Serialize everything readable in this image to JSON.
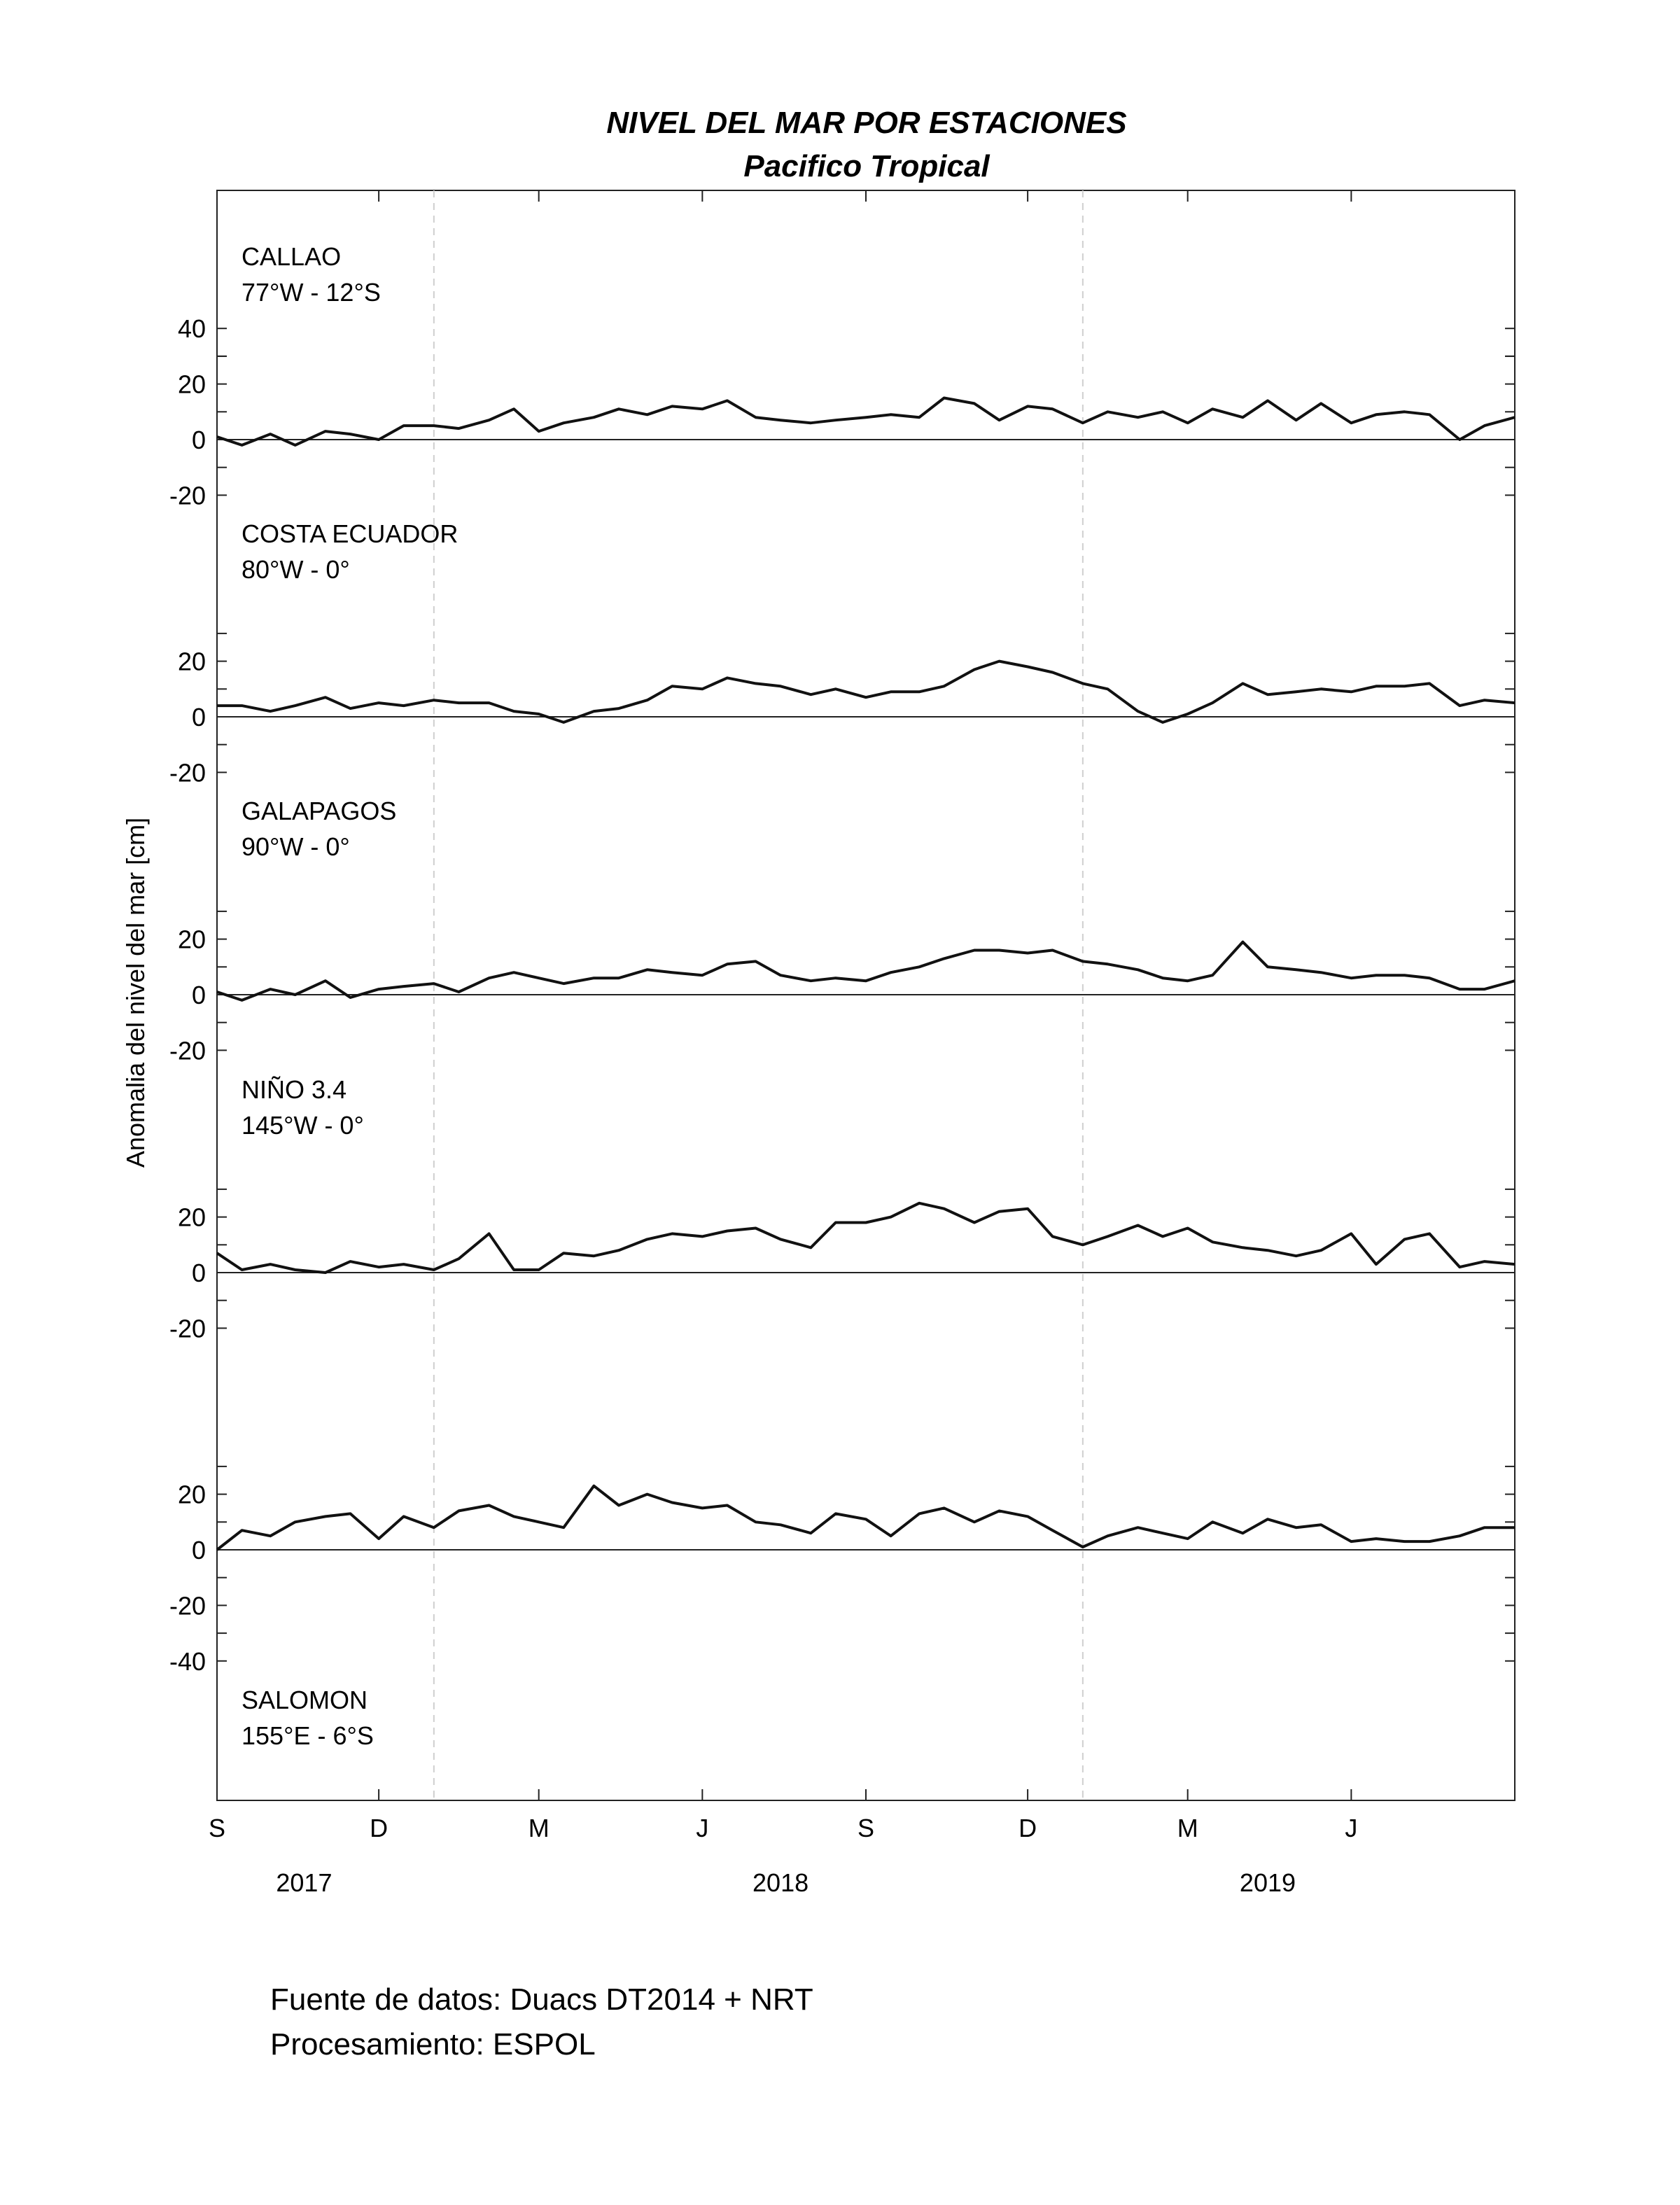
{
  "chart_data": {
    "type": "line",
    "title": "NIVEL DEL MAR POR ESTACIONES",
    "subtitle": "Pacifico Tropical",
    "ylabel": "Anomalia del nivel del mar [cm]",
    "xlabel": "",
    "grid": false,
    "x_range": [
      "2017-09-01",
      "2019-09-01"
    ],
    "month_ticks": [
      {
        "label": "S",
        "date": "2017-09-01"
      },
      {
        "label": "D",
        "date": "2017-12-01"
      },
      {
        "label": "M",
        "date": "2018-03-01"
      },
      {
        "label": "J",
        "date": "2018-06-01"
      },
      {
        "label": "S",
        "date": "2018-09-01"
      },
      {
        "label": "D",
        "date": "2018-12-01"
      },
      {
        "label": "M",
        "date": "2019-03-01"
      },
      {
        "label": "J",
        "date": "2019-06-01"
      }
    ],
    "year_labels": [
      {
        "label": "2017",
        "date": "2017-10-20"
      },
      {
        "label": "2018",
        "date": "2018-07-15"
      },
      {
        "label": "2019",
        "date": "2019-04-15"
      }
    ],
    "year_boundaries": [
      "2018-01-01",
      "2019-01-01"
    ],
    "panel_ylim": [
      -20,
      30
    ],
    "y_ticks": [
      {
        "label": "40",
        "value": 40
      },
      {
        "label": "20",
        "value": 20
      },
      {
        "label": "0",
        "value": 0
      },
      {
        "label": "-20",
        "value": -20
      },
      {
        "label": "20",
        "value": 20
      },
      {
        "label": "0",
        "value": 0
      },
      {
        "label": "-20",
        "value": -20
      },
      {
        "label": "20",
        "value": 20
      },
      {
        "label": "0",
        "value": 0
      },
      {
        "label": "-20",
        "value": -20
      },
      {
        "label": "20",
        "value": 20
      },
      {
        "label": "0",
        "value": 0
      },
      {
        "label": "-20",
        "value": -20
      },
      {
        "label": "20",
        "value": 20
      },
      {
        "label": "0",
        "value": 0
      },
      {
        "label": "-20",
        "value": -20
      },
      {
        "label": "-40",
        "value": -40
      }
    ],
    "series": [
      {
        "name": "CALLAO",
        "coords": "77°W - 12°S",
        "x": [
          "2017-09-01",
          "2017-09-15",
          "2017-10-01",
          "2017-10-15",
          "2017-11-01",
          "2017-11-15",
          "2017-12-01",
          "2017-12-15",
          "2018-01-01",
          "2018-01-15",
          "2018-02-01",
          "2018-02-15",
          "2018-03-01",
          "2018-03-15",
          "2018-04-01",
          "2018-04-15",
          "2018-05-01",
          "2018-05-15",
          "2018-06-01",
          "2018-06-15",
          "2018-07-01",
          "2018-07-15",
          "2018-08-01",
          "2018-08-15",
          "2018-09-01",
          "2018-09-15",
          "2018-10-01",
          "2018-10-15",
          "2018-11-01",
          "2018-11-15",
          "2018-12-01",
          "2018-12-15",
          "2019-01-01",
          "2019-01-15",
          "2019-02-01",
          "2019-02-15",
          "2019-03-01",
          "2019-03-15",
          "2019-04-01",
          "2019-04-15",
          "2019-05-01",
          "2019-05-15",
          "2019-06-01",
          "2019-06-15",
          "2019-07-01",
          "2019-07-15",
          "2019-08-01",
          "2019-08-15",
          "2019-09-01"
        ],
        "y": [
          1,
          -2,
          2,
          -2,
          3,
          2,
          0,
          5,
          5,
          4,
          7,
          11,
          3,
          6,
          8,
          11,
          9,
          12,
          11,
          14,
          8,
          7,
          6,
          7,
          8,
          9,
          8,
          15,
          13,
          7,
          12,
          11,
          6,
          10,
          8,
          10,
          6,
          11,
          8,
          14,
          7,
          13,
          6,
          9,
          10,
          9,
          0,
          5,
          8
        ]
      },
      {
        "name": "COSTA ECUADOR",
        "coords": "80°W - 0°",
        "x": [
          "2017-09-01",
          "2017-09-15",
          "2017-10-01",
          "2017-10-15",
          "2017-11-01",
          "2017-11-15",
          "2017-12-01",
          "2017-12-15",
          "2018-01-01",
          "2018-01-15",
          "2018-02-01",
          "2018-02-15",
          "2018-03-01",
          "2018-03-15",
          "2018-04-01",
          "2018-04-15",
          "2018-05-01",
          "2018-05-15",
          "2018-06-01",
          "2018-06-15",
          "2018-07-01",
          "2018-07-15",
          "2018-08-01",
          "2018-08-15",
          "2018-09-01",
          "2018-09-15",
          "2018-10-01",
          "2018-10-15",
          "2018-11-01",
          "2018-11-15",
          "2018-12-01",
          "2018-12-15",
          "2019-01-01",
          "2019-01-15",
          "2019-02-01",
          "2019-02-15",
          "2019-03-01",
          "2019-03-15",
          "2019-04-01",
          "2019-04-15",
          "2019-05-01",
          "2019-05-15",
          "2019-06-01",
          "2019-06-15",
          "2019-07-01",
          "2019-07-15",
          "2019-08-01",
          "2019-08-15",
          "2019-09-01"
        ],
        "y": [
          4,
          4,
          2,
          4,
          7,
          3,
          5,
          4,
          6,
          5,
          5,
          2,
          1,
          -2,
          2,
          3,
          6,
          11,
          10,
          14,
          12,
          11,
          8,
          10,
          7,
          9,
          9,
          11,
          17,
          20,
          18,
          16,
          12,
          10,
          2,
          -2,
          1,
          5,
          12,
          8,
          9,
          10,
          9,
          11,
          11,
          12,
          4,
          6,
          5
        ]
      },
      {
        "name": "GALAPAGOS",
        "coords": "90°W - 0°",
        "x": [
          "2017-09-01",
          "2017-09-15",
          "2017-10-01",
          "2017-10-15",
          "2017-11-01",
          "2017-11-15",
          "2017-12-01",
          "2017-12-15",
          "2018-01-01",
          "2018-01-15",
          "2018-02-01",
          "2018-02-15",
          "2018-03-01",
          "2018-03-15",
          "2018-04-01",
          "2018-04-15",
          "2018-05-01",
          "2018-05-15",
          "2018-06-01",
          "2018-06-15",
          "2018-07-01",
          "2018-07-15",
          "2018-08-01",
          "2018-08-15",
          "2018-09-01",
          "2018-09-15",
          "2018-10-01",
          "2018-10-15",
          "2018-11-01",
          "2018-11-15",
          "2018-12-01",
          "2018-12-15",
          "2019-01-01",
          "2019-01-15",
          "2019-02-01",
          "2019-02-15",
          "2019-03-01",
          "2019-03-15",
          "2019-04-01",
          "2019-04-15",
          "2019-05-01",
          "2019-05-15",
          "2019-06-01",
          "2019-06-15",
          "2019-07-01",
          "2019-07-15",
          "2019-08-01",
          "2019-08-15",
          "2019-09-01"
        ],
        "y": [
          1,
          -2,
          2,
          0,
          5,
          -1,
          2,
          3,
          4,
          1,
          6,
          8,
          6,
          4,
          6,
          6,
          9,
          8,
          7,
          11,
          12,
          7,
          5,
          6,
          5,
          8,
          10,
          13,
          16,
          16,
          15,
          16,
          12,
          11,
          9,
          6,
          5,
          7,
          19,
          10,
          9,
          8,
          6,
          7,
          7,
          6,
          2,
          2,
          5
        ]
      },
      {
        "name": "NIÑO 3.4",
        "coords": "145°W - 0°",
        "x": [
          "2017-09-01",
          "2017-09-15",
          "2017-10-01",
          "2017-10-15",
          "2017-11-01",
          "2017-11-15",
          "2017-12-01",
          "2017-12-15",
          "2018-01-01",
          "2018-01-15",
          "2018-02-01",
          "2018-02-15",
          "2018-03-01",
          "2018-03-15",
          "2018-04-01",
          "2018-04-15",
          "2018-05-01",
          "2018-05-15",
          "2018-06-01",
          "2018-06-15",
          "2018-07-01",
          "2018-07-15",
          "2018-08-01",
          "2018-08-15",
          "2018-09-01",
          "2018-09-15",
          "2018-10-01",
          "2018-10-15",
          "2018-11-01",
          "2018-11-15",
          "2018-12-01",
          "2018-12-15",
          "2019-01-01",
          "2019-01-15",
          "2019-02-01",
          "2019-02-15",
          "2019-03-01",
          "2019-03-15",
          "2019-04-01",
          "2019-04-15",
          "2019-05-01",
          "2019-05-15",
          "2019-06-01",
          "2019-06-15",
          "2019-07-01",
          "2019-07-15",
          "2019-08-01",
          "2019-08-15",
          "2019-09-01"
        ],
        "y": [
          7,
          1,
          3,
          1,
          0,
          4,
          2,
          3,
          1,
          5,
          14,
          1,
          1,
          7,
          6,
          8,
          12,
          14,
          13,
          15,
          16,
          12,
          9,
          18,
          18,
          20,
          25,
          23,
          18,
          22,
          23,
          13,
          10,
          13,
          17,
          13,
          16,
          11,
          9,
          8,
          6,
          8,
          14,
          3,
          12,
          14,
          2,
          4,
          3
        ]
      },
      {
        "name": "SALOMON",
        "coords": "155°E - 6°S",
        "x": [
          "2017-09-01",
          "2017-09-15",
          "2017-10-01",
          "2017-10-15",
          "2017-11-01",
          "2017-11-15",
          "2017-12-01",
          "2017-12-15",
          "2018-01-01",
          "2018-01-15",
          "2018-02-01",
          "2018-02-15",
          "2018-03-01",
          "2018-03-15",
          "2018-04-01",
          "2018-04-15",
          "2018-05-01",
          "2018-05-15",
          "2018-06-01",
          "2018-06-15",
          "2018-07-01",
          "2018-07-15",
          "2018-08-01",
          "2018-08-15",
          "2018-09-01",
          "2018-09-15",
          "2018-10-01",
          "2018-10-15",
          "2018-11-01",
          "2018-11-15",
          "2018-12-01",
          "2018-12-15",
          "2019-01-01",
          "2019-01-15",
          "2019-02-01",
          "2019-02-15",
          "2019-03-01",
          "2019-03-15",
          "2019-04-01",
          "2019-04-15",
          "2019-05-01",
          "2019-05-15",
          "2019-06-01",
          "2019-06-15",
          "2019-07-01",
          "2019-07-15",
          "2019-08-01",
          "2019-08-15",
          "2019-09-01"
        ],
        "y": [
          0,
          7,
          5,
          10,
          12,
          13,
          4,
          12,
          8,
          14,
          16,
          12,
          10,
          8,
          23,
          16,
          20,
          17,
          15,
          16,
          10,
          9,
          6,
          13,
          11,
          5,
          13,
          15,
          10,
          14,
          12,
          7,
          1,
          5,
          8,
          6,
          4,
          10,
          6,
          11,
          8,
          9,
          3,
          4,
          3,
          3,
          5,
          8,
          8
        ]
      }
    ]
  },
  "footer": {
    "source": "Fuente de datos: Duacs DT2014 + NRT",
    "processing": "Procesamiento: ESPOL"
  }
}
